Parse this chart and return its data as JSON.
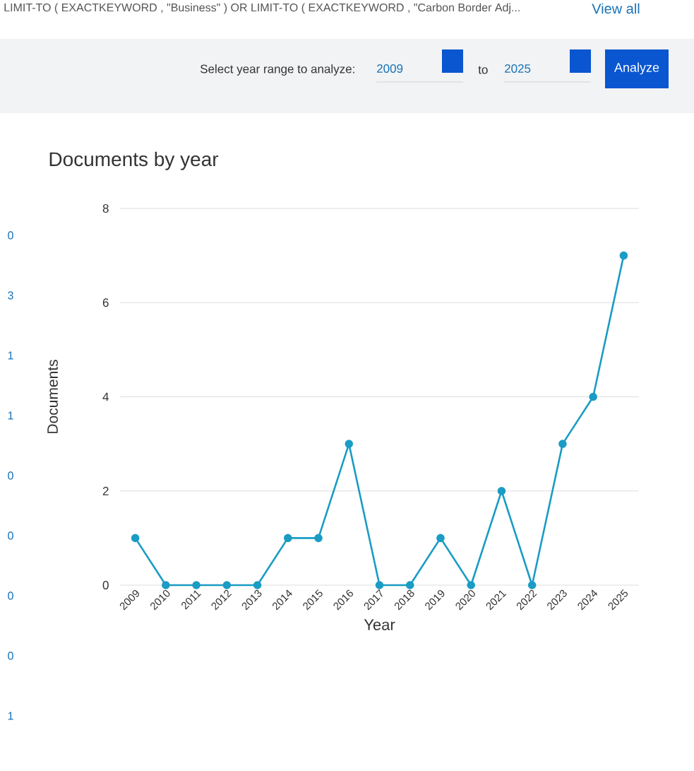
{
  "chart_data": [
    {
      "type": "other",
      "annotations": [
        "LIMIT-TO ( EXACTKEYWORD , \"Business\" ) OR LIMIT-TO ( EXACTKEYWORD , \"Carbon Border Adj...",
        "View all",
        "Select year range to analyze:",
        "2009",
        "to",
        "2025",
        "Analyze",
        "0",
        "3",
        "1",
        "1",
        "0",
        "0",
        "0",
        "0",
        "1"
      ]
    },
    {
      "type": "line",
      "title": "Documents by year",
      "xlabel": "Year",
      "ylabel": "Documents",
      "categories": [
        "2009",
        "2010",
        "2011",
        "2012",
        "2013",
        "2014",
        "2015",
        "2016",
        "2017",
        "2018",
        "2019",
        "2020",
        "2021",
        "2022",
        "2023",
        "2024",
        "2025"
      ],
      "series": [
        {
          "color": "#1a9cc4",
          "values": [
            1,
            0,
            0,
            0,
            0,
            1,
            1,
            3,
            0,
            0,
            1,
            0,
            2,
            0,
            3,
            4,
            7
          ]
        }
      ],
      "ylim": [
        0,
        8
      ],
      "yticks": [
        0,
        2,
        4,
        6,
        8
      ],
      "grid": "y",
      "marker": "circle",
      "line_style": "solid"
    }
  ]
}
